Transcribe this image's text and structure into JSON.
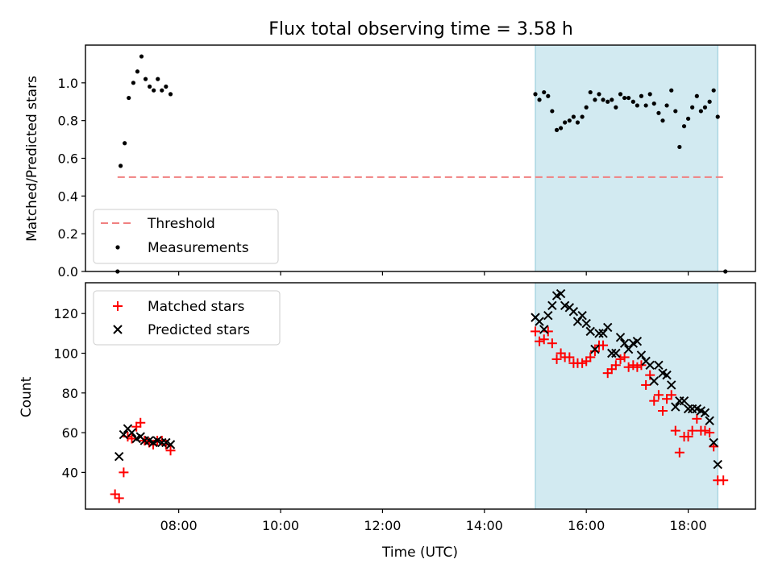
{
  "title": "Flux total observing time = 3.58 h",
  "x_axis": {
    "label": "Time (UTC)",
    "ticks": [
      {
        "v": 8,
        "label": "08:00"
      },
      {
        "v": 10,
        "label": "10:00"
      },
      {
        "v": 12,
        "label": "12:00"
      },
      {
        "v": 14,
        "label": "14:00"
      },
      {
        "v": 16,
        "label": "16:00"
      },
      {
        "v": 18,
        "label": "18:00"
      }
    ]
  },
  "shaded_interval_hours": [
    15.0,
    18.58
  ],
  "colors": {
    "shade": "#add8e6",
    "threshold": "#f08080",
    "measurement": "#000000",
    "matched": "#ff0000",
    "predicted": "#000000"
  },
  "chart_data": [
    {
      "type": "scatter",
      "ylabel": "Matched/Predicted stars",
      "xlim": [
        6.17,
        19.32
      ],
      "ylim": [
        0,
        1.2
      ],
      "yticks": [
        {
          "v": 0.0,
          "label": "0.0"
        },
        {
          "v": 0.2,
          "label": "0.2"
        },
        {
          "v": 0.4,
          "label": "0.4"
        },
        {
          "v": 0.6,
          "label": "0.6"
        },
        {
          "v": 0.8,
          "label": "0.8"
        },
        {
          "v": 1.0,
          "label": "1.0"
        }
      ],
      "legend_position": "lower-left",
      "threshold": {
        "name": "Threshold",
        "value": 0.5,
        "x_range": [
          6.8,
          18.73
        ]
      },
      "series": [
        {
          "name": "Measurements",
          "points": [
            [
              6.8,
              0.0
            ],
            [
              6.86,
              0.56
            ],
            [
              6.94,
              0.68
            ],
            [
              7.02,
              0.92
            ],
            [
              7.11,
              1.0
            ],
            [
              7.19,
              1.06
            ],
            [
              7.27,
              1.14
            ],
            [
              7.35,
              1.02
            ],
            [
              7.43,
              0.98
            ],
            [
              7.51,
              0.96
            ],
            [
              7.59,
              1.02
            ],
            [
              7.67,
              0.96
            ],
            [
              7.75,
              0.98
            ],
            [
              7.84,
              0.94
            ],
            [
              15.0,
              0.94
            ],
            [
              15.08,
              0.91
            ],
            [
              15.17,
              0.95
            ],
            [
              15.25,
              0.93
            ],
            [
              15.33,
              0.85
            ],
            [
              15.42,
              0.75
            ],
            [
              15.5,
              0.76
            ],
            [
              15.58,
              0.79
            ],
            [
              15.67,
              0.8
            ],
            [
              15.75,
              0.82
            ],
            [
              15.83,
              0.79
            ],
            [
              15.92,
              0.82
            ],
            [
              16.0,
              0.87
            ],
            [
              16.08,
              0.95
            ],
            [
              16.17,
              0.91
            ],
            [
              16.25,
              0.94
            ],
            [
              16.33,
              0.91
            ],
            [
              16.42,
              0.9
            ],
            [
              16.5,
              0.91
            ],
            [
              16.58,
              0.87
            ],
            [
              16.67,
              0.94
            ],
            [
              16.75,
              0.92
            ],
            [
              16.83,
              0.92
            ],
            [
              16.92,
              0.9
            ],
            [
              17.0,
              0.88
            ],
            [
              17.08,
              0.93
            ],
            [
              17.17,
              0.88
            ],
            [
              17.25,
              0.94
            ],
            [
              17.33,
              0.89
            ],
            [
              17.42,
              0.84
            ],
            [
              17.5,
              0.8
            ],
            [
              17.58,
              0.88
            ],
            [
              17.67,
              0.96
            ],
            [
              17.75,
              0.85
            ],
            [
              17.83,
              0.66
            ],
            [
              17.92,
              0.77
            ],
            [
              18.0,
              0.81
            ],
            [
              18.08,
              0.87
            ],
            [
              18.17,
              0.93
            ],
            [
              18.25,
              0.85
            ],
            [
              18.33,
              0.87
            ],
            [
              18.42,
              0.9
            ],
            [
              18.5,
              0.96
            ],
            [
              18.58,
              0.82
            ],
            [
              18.73,
              0.0
            ]
          ]
        }
      ]
    },
    {
      "type": "scatter",
      "ylabel": "Count",
      "xlabel": "Time (UTC)",
      "xlim": [
        6.17,
        19.32
      ],
      "ylim": [
        21.5,
        135.5
      ],
      "yticks": [
        {
          "v": 40,
          "label": "40"
        },
        {
          "v": 60,
          "label": "60"
        },
        {
          "v": 80,
          "label": "80"
        },
        {
          "v": 100,
          "label": "100"
        },
        {
          "v": 120,
          "label": "120"
        }
      ],
      "legend_position": "upper-left",
      "series": [
        {
          "name": "Matched stars",
          "marker": "plus",
          "points": [
            [
              6.75,
              29
            ],
            [
              6.83,
              27
            ],
            [
              6.92,
              40
            ],
            [
              7.0,
              58
            ],
            [
              7.08,
              57
            ],
            [
              7.17,
              63
            ],
            [
              7.25,
              65
            ],
            [
              7.33,
              56
            ],
            [
              7.42,
              55
            ],
            [
              7.5,
              54
            ],
            [
              7.58,
              56
            ],
            [
              7.67,
              56
            ],
            [
              7.75,
              54
            ],
            [
              7.84,
              51
            ],
            [
              15.0,
              111
            ],
            [
              15.08,
              106
            ],
            [
              15.17,
              107
            ],
            [
              15.25,
              111
            ],
            [
              15.33,
              105
            ],
            [
              15.42,
              97
            ],
            [
              15.5,
              100
            ],
            [
              15.58,
              98
            ],
            [
              15.67,
              98
            ],
            [
              15.75,
              95
            ],
            [
              15.83,
              95
            ],
            [
              15.92,
              95
            ],
            [
              16.0,
              96
            ],
            [
              16.08,
              98
            ],
            [
              16.17,
              101
            ],
            [
              16.25,
              104
            ],
            [
              16.33,
              104
            ],
            [
              16.42,
              90
            ],
            [
              16.5,
              92
            ],
            [
              16.58,
              94
            ],
            [
              16.67,
              97
            ],
            [
              16.75,
              98
            ],
            [
              16.83,
              93
            ],
            [
              16.92,
              94
            ],
            [
              17.0,
              93
            ],
            [
              17.08,
              94
            ],
            [
              17.17,
              84
            ],
            [
              17.25,
              89
            ],
            [
              17.33,
              76
            ],
            [
              17.42,
              79
            ],
            [
              17.5,
              71
            ],
            [
              17.58,
              77
            ],
            [
              17.67,
              79
            ],
            [
              17.75,
              61
            ],
            [
              17.83,
              50
            ],
            [
              17.92,
              58
            ],
            [
              18.0,
              58
            ],
            [
              18.08,
              61
            ],
            [
              18.17,
              67
            ],
            [
              18.25,
              61
            ],
            [
              18.33,
              61
            ],
            [
              18.42,
              60
            ],
            [
              18.5,
              53
            ],
            [
              18.58,
              36
            ],
            [
              18.69,
              36
            ]
          ]
        },
        {
          "name": "Predicted stars",
          "marker": "x",
          "points": [
            [
              6.83,
              48
            ],
            [
              6.92,
              59
            ],
            [
              7.0,
              62
            ],
            [
              7.08,
              60
            ],
            [
              7.17,
              57
            ],
            [
              7.25,
              58
            ],
            [
              7.33,
              56
            ],
            [
              7.42,
              56
            ],
            [
              7.5,
              55
            ],
            [
              7.58,
              56
            ],
            [
              7.67,
              55
            ],
            [
              7.75,
              55
            ],
            [
              7.84,
              54
            ],
            [
              15.0,
              118
            ],
            [
              15.08,
              116
            ],
            [
              15.17,
              112
            ],
            [
              15.25,
              119
            ],
            [
              15.33,
              124
            ],
            [
              15.42,
              129
            ],
            [
              15.5,
              130
            ],
            [
              15.58,
              124
            ],
            [
              15.67,
              123
            ],
            [
              15.75,
              121
            ],
            [
              15.83,
              116
            ],
            [
              15.92,
              119
            ],
            [
              16.0,
              115
            ],
            [
              16.08,
              111
            ],
            [
              16.17,
              102
            ],
            [
              16.25,
              110
            ],
            [
              16.33,
              110
            ],
            [
              16.42,
              113
            ],
            [
              16.5,
              100
            ],
            [
              16.58,
              100
            ],
            [
              16.67,
              108
            ],
            [
              16.75,
              105
            ],
            [
              16.83,
              102
            ],
            [
              16.92,
              105
            ],
            [
              17.0,
              106
            ],
            [
              17.08,
              99
            ],
            [
              17.17,
              96
            ],
            [
              17.25,
              94
            ],
            [
              17.33,
              86
            ],
            [
              17.42,
              94
            ],
            [
              17.5,
              90
            ],
            [
              17.58,
              89
            ],
            [
              17.67,
              84
            ],
            [
              17.75,
              73
            ],
            [
              17.83,
              76
            ],
            [
              17.92,
              76
            ],
            [
              18.0,
              72
            ],
            [
              18.08,
              72
            ],
            [
              18.17,
              72
            ],
            [
              18.25,
              71
            ],
            [
              18.33,
              70
            ],
            [
              18.42,
              66
            ],
            [
              18.5,
              55
            ],
            [
              18.58,
              44
            ]
          ]
        }
      ]
    }
  ]
}
